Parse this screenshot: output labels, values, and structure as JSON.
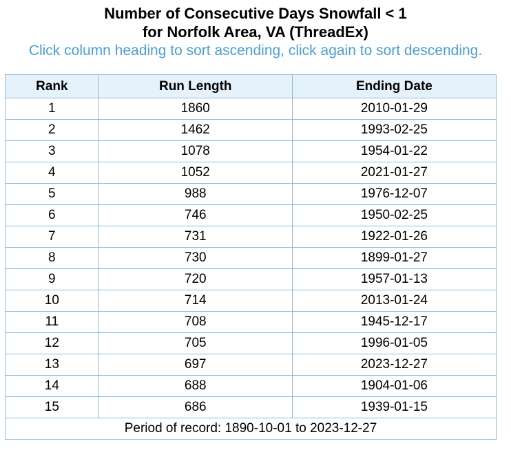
{
  "header": {
    "title_line1": "Number of Consecutive Days Snowfall < 1",
    "title_line2": "for Norfolk Area, VA (ThreadEx)",
    "instructions": "Click column heading to sort ascending, click again to sort descending."
  },
  "table": {
    "columns": [
      "Rank",
      "Run Length",
      "Ending Date"
    ],
    "rows": [
      [
        "1",
        "1860",
        "2010-01-29"
      ],
      [
        "2",
        "1462",
        "1993-02-25"
      ],
      [
        "3",
        "1078",
        "1954-01-22"
      ],
      [
        "4",
        "1052",
        "2021-01-27"
      ],
      [
        "5",
        "988",
        "1976-12-07"
      ],
      [
        "6",
        "746",
        "1950-02-25"
      ],
      [
        "7",
        "731",
        "1922-01-26"
      ],
      [
        "8",
        "730",
        "1899-01-27"
      ],
      [
        "9",
        "720",
        "1957-01-13"
      ],
      [
        "10",
        "714",
        "2013-01-24"
      ],
      [
        "11",
        "708",
        "1945-12-17"
      ],
      [
        "12",
        "705",
        "1996-01-05"
      ],
      [
        "13",
        "697",
        "2023-12-27"
      ],
      [
        "14",
        "688",
        "1904-01-06"
      ],
      [
        "15",
        "686",
        "1939-01-15"
      ]
    ],
    "footer": "Period of record: 1890-10-01 to 2023-12-27"
  },
  "colors": {
    "instructions_text": "#4a9fd6",
    "header_background": "#e6f2fb",
    "border": "#8db8d9"
  }
}
